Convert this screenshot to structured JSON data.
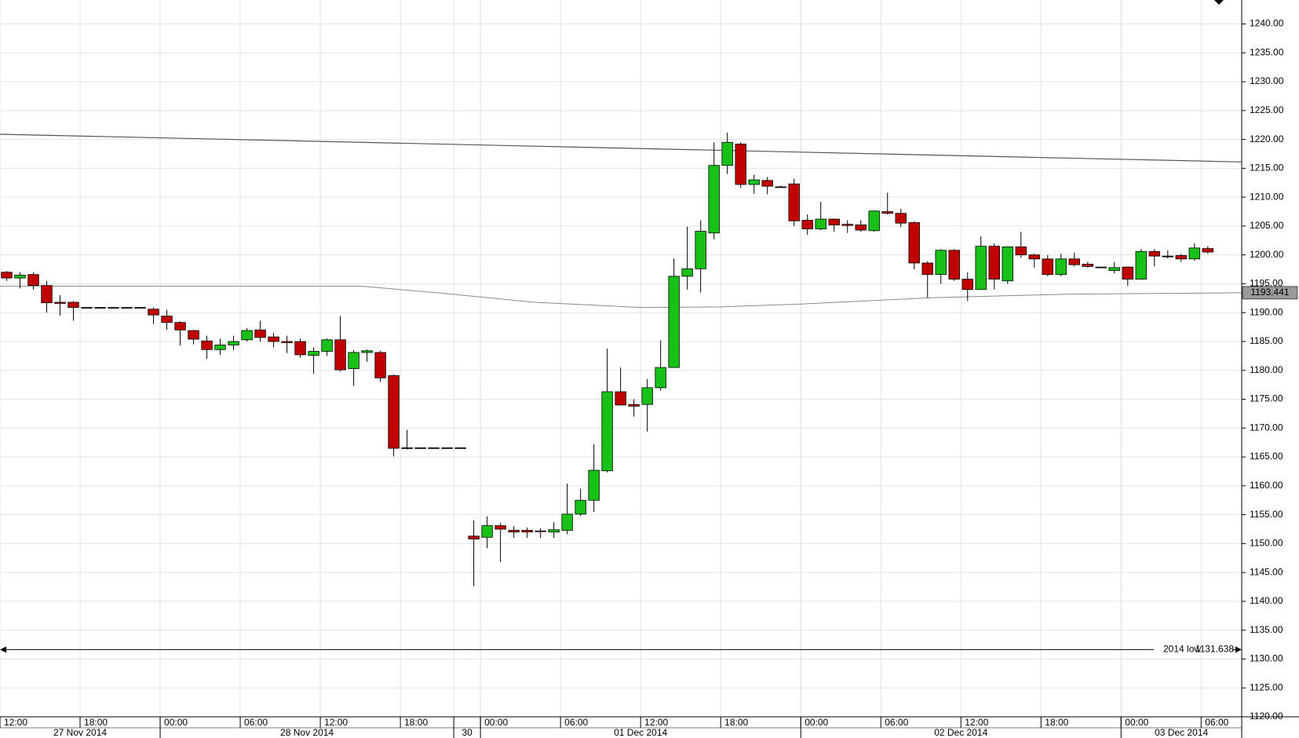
{
  "chart_data": {
    "type": "candlestick",
    "x": [
      0.5,
      1.5,
      2.5,
      3.5,
      4.5,
      5.5,
      6.5,
      7.5,
      8.5,
      9.5,
      10.5,
      11.5,
      12.5,
      13.5,
      14.5,
      15.5,
      16.5,
      17.5,
      18.5,
      19.5,
      20.5,
      21.5,
      22.5,
      23.5,
      24.5,
      25.5,
      26.5,
      27.5,
      28.5,
      29.5,
      30.5,
      31.5,
      32.5,
      33.5,
      34.5,
      35.5,
      36.5,
      37.5,
      38.5,
      39.5,
      40.5,
      41.5,
      42.5,
      43.5,
      44.5,
      45.5,
      46.5,
      47.5,
      48.5,
      49.5,
      50.5,
      51.5,
      52.5,
      53.5,
      54.5,
      55.5,
      56.5,
      57.5,
      58.5,
      59.5,
      60.5,
      61.5,
      62.5,
      63.5,
      64.5,
      65.5,
      66.5,
      67.5,
      68.5,
      69.5,
      70.5,
      71.5,
      72.5,
      73.5,
      74.5,
      75.5,
      76.5,
      77.5,
      78.5,
      79.5,
      80.5,
      81.5,
      82.5,
      83.5,
      84.5,
      85.5,
      86.5,
      87.5,
      88.5,
      89.5,
      90.5
    ],
    "open": [
      1197.0,
      1196.0,
      1196.6,
      1194.7,
      1191.8,
      1191.8,
      1190.9,
      1190.9,
      1190.9,
      1190.9,
      1190.9,
      1190.6,
      1189.4,
      1188.3,
      1186.9,
      1185.1,
      1183.6,
      1184.4,
      1185.3,
      1187.0,
      1185.8,
      1185.0,
      1185.0,
      1182.6,
      1183.3,
      1185.3,
      1180.3,
      1183.1,
      1183.1,
      1179.1,
      1166.6,
      1166.6,
      1166.6,
      1166.6,
      1166.6,
      1151.3,
      1151.1,
      1153.1,
      1152.3,
      1152.3,
      1152.2,
      1152.0,
      1152.3,
      1155.1,
      1157.5,
      1162.6,
      1176.3,
      1174.1,
      1174.1,
      1177.0,
      1180.5,
      1196.3,
      1197.6,
      1203.8,
      1215.5,
      1219.2,
      1212.2,
      1212.9,
      1211.8,
      1212.3,
      1206.0,
      1204.5,
      1206.2,
      1205.3,
      1205.2,
      1204.2,
      1207.5,
      1207.2,
      1205.6,
      1198.6,
      1196.6,
      1200.8,
      1195.8,
      1194.0,
      1201.5,
      1195.5,
      1201.4,
      1200.0,
      1199.3,
      1196.6,
      1199.3,
      1198.4,
      1197.9,
      1197.3,
      1197.9,
      1195.8,
      1200.6,
      1199.8,
      1199.9,
      1199.3,
      1201.1
    ],
    "high": [
      1197.2,
      1197.0,
      1197.0,
      1195.5,
      1193.0,
      1192.0,
      1190.9,
      1190.9,
      1190.9,
      1190.9,
      1190.9,
      1190.9,
      1190.5,
      1188.5,
      1187.0,
      1186.0,
      1185.5,
      1186.0,
      1187.3,
      1188.6,
      1186.5,
      1186.0,
      1185.5,
      1184.0,
      1185.5,
      1189.4,
      1183.5,
      1183.6,
      1183.4,
      1179.3,
      1169.7,
      1166.6,
      1166.6,
      1166.6,
      1166.6,
      1154.0,
      1154.7,
      1153.6,
      1153.0,
      1152.8,
      1152.7,
      1153.7,
      1160.4,
      1159.5,
      1167.2,
      1183.8,
      1180.5,
      1175.0,
      1178.5,
      1185.2,
      1199.4,
      1204.9,
      1206.0,
      1219.5,
      1221.2,
      1219.5,
      1213.9,
      1213.5,
      1212.0,
      1213.2,
      1207.0,
      1209.2,
      1206.3,
      1206.0,
      1206.0,
      1207.7,
      1210.8,
      1208.0,
      1205.8,
      1198.9,
      1201.0,
      1201.0,
      1197.0,
      1203.2,
      1202.0,
      1201.5,
      1204.0,
      1200.2,
      1200.0,
      1200.2,
      1200.4,
      1198.8,
      1197.9,
      1198.8,
      1198.0,
      1201.0,
      1201.0,
      1200.8,
      1200.2,
      1202.0,
      1201.5
    ],
    "low": [
      1195.5,
      1194.2,
      1194.0,
      1190.0,
      1189.5,
      1188.6,
      1190.9,
      1190.9,
      1190.9,
      1190.9,
      1190.9,
      1188.0,
      1187.0,
      1184.3,
      1184.5,
      1182.0,
      1182.7,
      1183.5,
      1185.0,
      1185.0,
      1184.0,
      1183.0,
      1182.2,
      1179.4,
      1182.5,
      1179.8,
      1177.3,
      1181.5,
      1178.0,
      1165.1,
      1166.3,
      1166.6,
      1166.6,
      1166.6,
      1166.6,
      1142.6,
      1149.2,
      1146.8,
      1151.0,
      1151.0,
      1151.0,
      1151.0,
      1151.6,
      1154.8,
      1155.5,
      1162.3,
      1174.0,
      1172.0,
      1169.4,
      1176.5,
      1180.5,
      1194.0,
      1193.5,
      1202.7,
      1214.0,
      1211.6,
      1210.6,
      1210.5,
      1211.7,
      1205.0,
      1203.5,
      1204.3,
      1204.0,
      1203.8,
      1204.0,
      1204.0,
      1207.0,
      1204.8,
      1197.5,
      1192.6,
      1195.0,
      1195.5,
      1192.0,
      1194.0,
      1194.0,
      1195.0,
      1199.5,
      1197.8,
      1196.3,
      1196.3,
      1198.0,
      1197.8,
      1197.9,
      1196.8,
      1194.6,
      1195.8,
      1198.0,
      1199.4,
      1198.8,
      1199.0,
      1200.2
    ],
    "close": [
      1196.0,
      1196.5,
      1194.7,
      1191.7,
      1191.6,
      1190.9,
      1190.9,
      1190.9,
      1190.9,
      1190.9,
      1190.9,
      1189.6,
      1188.3,
      1187.0,
      1185.4,
      1183.6,
      1184.4,
      1185.0,
      1186.9,
      1185.7,
      1185.0,
      1184.8,
      1182.7,
      1183.3,
      1185.3,
      1180.1,
      1183.1,
      1183.4,
      1178.7,
      1166.5,
      1166.6,
      1166.6,
      1166.6,
      1166.6,
      1166.6,
      1150.8,
      1153.1,
      1152.5,
      1152.0,
      1152.0,
      1152.1,
      1152.4,
      1155.1,
      1157.5,
      1162.7,
      1176.3,
      1174.0,
      1173.8,
      1177.0,
      1180.5,
      1196.3,
      1197.6,
      1204.1,
      1215.5,
      1219.5,
      1212.2,
      1213.0,
      1211.9,
      1211.8,
      1205.9,
      1204.5,
      1206.2,
      1205.2,
      1205.1,
      1204.3,
      1207.6,
      1207.2,
      1205.5,
      1198.6,
      1196.6,
      1200.8,
      1195.8,
      1194.0,
      1201.5,
      1195.8,
      1201.4,
      1200.0,
      1199.3,
      1196.6,
      1199.3,
      1198.3,
      1198.0,
      1197.9,
      1197.8,
      1195.8,
      1200.6,
      1199.8,
      1199.8,
      1199.3,
      1201.2,
      1200.5
    ],
    "up_color": "#17c117",
    "down_color": "#c00000",
    "flat_color": "#222222",
    "lines": [
      {
        "x": [
          0,
          93.04
        ],
        "values": [
          1220.9,
          1216.1
        ],
        "color": "#555555"
      },
      {
        "x": [
          0,
          27,
          33,
          40,
          48,
          54,
          60,
          70,
          80,
          93.04
        ],
        "values": [
          1194.6,
          1194.6,
          1193.4,
          1191.8,
          1190.9,
          1191.0,
          1191.5,
          1192.6,
          1193.2,
          1193.441
        ],
        "color": "#888888"
      }
    ],
    "last_value": 1193.441,
    "low_line": {
      "text": "2014 low",
      "value": 1131.638
    },
    "xlim": [
      0,
      93.04
    ],
    "ylim": [
      1120,
      1244.15
    ],
    "yticks": [
      {
        "value": 1120,
        "label": "1120.00"
      },
      {
        "value": 1125,
        "label": "1125.00"
      },
      {
        "value": 1130,
        "label": "1130.00"
      },
      {
        "value": 1135,
        "label": "1135.00"
      },
      {
        "value": 1140,
        "label": "1140.00"
      },
      {
        "value": 1145,
        "label": "1145.00"
      },
      {
        "value": 1150,
        "label": "1150.00"
      },
      {
        "value": 1155,
        "label": "1155.00"
      },
      {
        "value": 1160,
        "label": "1160.00"
      },
      {
        "value": 1165,
        "label": "1165.00"
      },
      {
        "value": 1170,
        "label": "1170.00"
      },
      {
        "value": 1175,
        "label": "1175.00"
      },
      {
        "value": 1180,
        "label": "1180.00"
      },
      {
        "value": 1185,
        "label": "1185.00"
      },
      {
        "value": 1190,
        "label": "1190.00"
      },
      {
        "value": 1195,
        "label": "1195.00"
      },
      {
        "value": 1200,
        "label": "1200.00"
      },
      {
        "value": 1205,
        "label": "1205.00"
      },
      {
        "value": 1210,
        "label": "1210.00"
      },
      {
        "value": 1215,
        "label": "1215.00"
      },
      {
        "value": 1220,
        "label": "1220.00"
      },
      {
        "value": 1225,
        "label": "1225.00"
      },
      {
        "value": 1230,
        "label": "1230.00"
      },
      {
        "value": 1235,
        "label": "1235.00"
      },
      {
        "value": 1240,
        "label": "1240.00"
      }
    ],
    "xticks": [
      {
        "value": 0,
        "label": "12:00"
      },
      {
        "value": 6,
        "label": "18:00"
      },
      {
        "value": 12,
        "label": "00:00"
      },
      {
        "value": 18,
        "label": "06:00"
      },
      {
        "value": 24,
        "label": "12:00"
      },
      {
        "value": 30,
        "label": "18:00"
      },
      {
        "value": 36,
        "label": "00:00"
      },
      {
        "value": 42,
        "label": "06:00"
      },
      {
        "value": 48,
        "label": "12:00"
      },
      {
        "value": 54,
        "label": "18:00"
      },
      {
        "value": 60,
        "label": "00:00"
      },
      {
        "value": 66,
        "label": "06:00"
      },
      {
        "value": 72,
        "label": "12:00"
      },
      {
        "value": 78,
        "label": "18:00"
      },
      {
        "value": 84,
        "label": "00:00"
      },
      {
        "value": 90,
        "label": "06:00"
      }
    ],
    "date_bounds": [
      12,
      34,
      36,
      60,
      84
    ],
    "date_labels": [
      "27 Nov 2014",
      "28 Nov 2014",
      "30",
      "01 Dec 2014",
      "02 Dec 2014",
      "03 Dec 2014"
    ],
    "grid": true
  }
}
